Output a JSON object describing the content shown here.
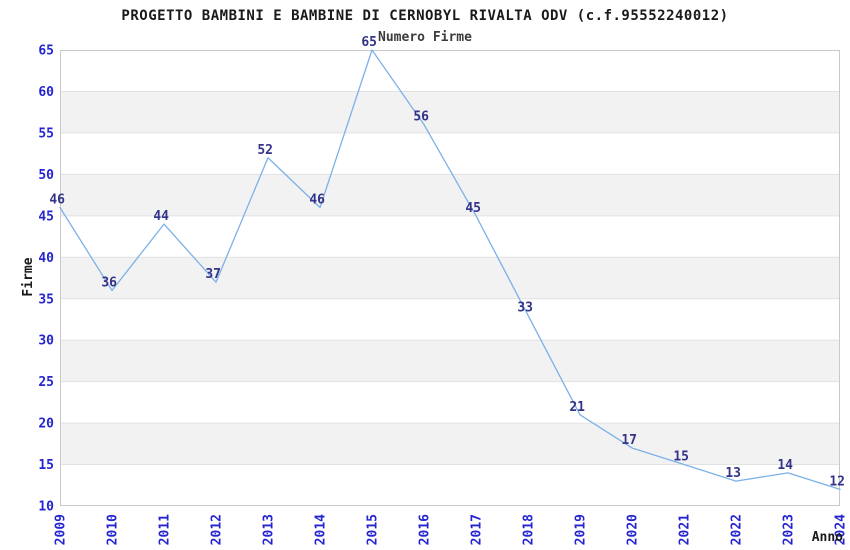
{
  "page": {
    "background": "#ffffff"
  },
  "chart_data": {
    "type": "line",
    "title": "PROGETTO BAMBINI E BAMBINE DI CERNOBYL RIVALTA ODV (c.f.95552240012)",
    "subtitle": "Numero Firme",
    "xlabel": "Anno",
    "ylabel": "Firme",
    "x": [
      2009,
      2010,
      2011,
      2012,
      2013,
      2014,
      2015,
      2016,
      2017,
      2018,
      2019,
      2020,
      2021,
      2022,
      2023,
      2024
    ],
    "values": [
      46,
      36,
      44,
      37,
      52,
      46,
      65,
      56,
      45,
      33,
      21,
      17,
      15,
      13,
      14,
      12
    ],
    "ylim": [
      10,
      65
    ],
    "ytick_step": 5,
    "grid": true,
    "bands": "alternating horizontal white/gray every 5 units",
    "legend": "none",
    "point_labels_visible": true,
    "colors": {
      "line": "#7cb1e8",
      "tick_label": "#2525cf",
      "point_label": "#333389",
      "band_gray": "#f2f2f2",
      "gridline": "#e2e2e2",
      "plot_border": "#c9c9c9",
      "title": "#1a1a1a",
      "subtitle": "#3c3c3c",
      "axis_title": "#1a1a1a",
      "background": "#ffffff"
    }
  }
}
